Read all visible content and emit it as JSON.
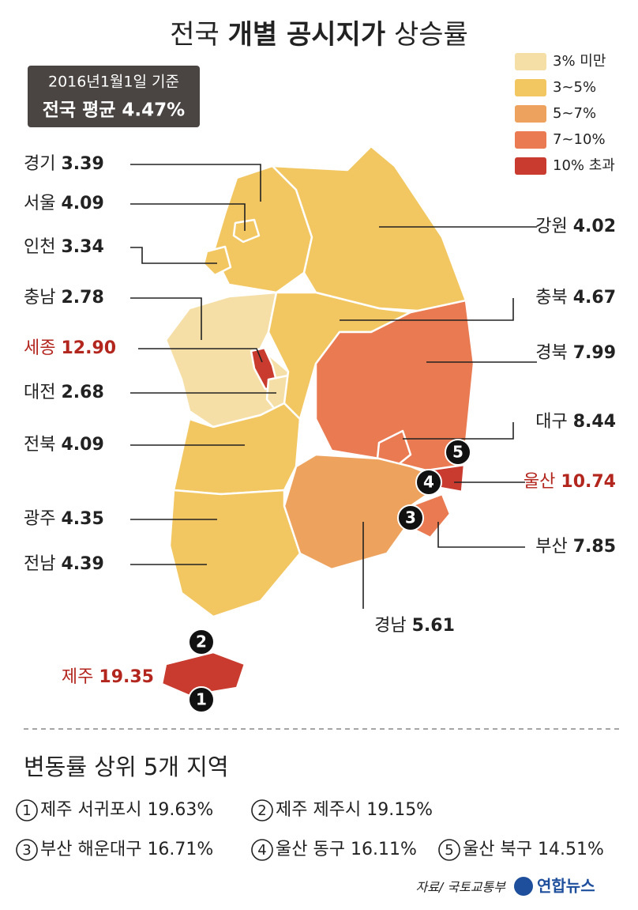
{
  "title": [
    "전국",
    "개별 공시지가",
    "상승률"
  ],
  "info": {
    "date": "2016년1월1일 기준",
    "average": "전국 평균 4.47%"
  },
  "legend": [
    {
      "label": "3% 미만",
      "color": "#f6dfa6"
    },
    {
      "label": "3~5%",
      "color": "#f2c761"
    },
    {
      "label": "5~7%",
      "color": "#eda25d"
    },
    {
      "label": "7~10%",
      "color": "#e97a52"
    },
    {
      "label": "10% 초과",
      "color": "#c83b2e"
    }
  ],
  "regions": [
    {
      "name": "경기",
      "value": "3.39",
      "color": "#f2c761"
    },
    {
      "name": "서울",
      "value": "4.09",
      "color": "#f2c761"
    },
    {
      "name": "인천",
      "value": "3.34",
      "color": "#f2c761"
    },
    {
      "name": "충남",
      "value": "2.78",
      "color": "#f6dfa6"
    },
    {
      "name": "세종",
      "value": "12.90",
      "color": "#c83b2e"
    },
    {
      "name": "대전",
      "value": "2.68",
      "color": "#f6dfa6"
    },
    {
      "name": "전북",
      "value": "4.09",
      "color": "#f2c761"
    },
    {
      "name": "광주",
      "value": "4.35",
      "color": "#f2c761"
    },
    {
      "name": "전남",
      "value": "4.39",
      "color": "#f2c761"
    },
    {
      "name": "강원",
      "value": "4.02",
      "color": "#f2c761"
    },
    {
      "name": "충북",
      "value": "4.67",
      "color": "#f2c761"
    },
    {
      "name": "경북",
      "value": "7.99",
      "color": "#e97a52"
    },
    {
      "name": "대구",
      "value": "8.44",
      "color": "#e97a52"
    },
    {
      "name": "울산",
      "value": "10.74",
      "color": "#c83b2e"
    },
    {
      "name": "부산",
      "value": "7.85",
      "color": "#e97a52"
    },
    {
      "name": "경남",
      "value": "5.61",
      "color": "#eda25d"
    },
    {
      "name": "제주",
      "value": "19.35",
      "color": "#c83b2e"
    }
  ],
  "top5": {
    "heading": "변동률 상위 5개 지역",
    "ranks": [
      {
        "rank": 1,
        "name": "제주 서귀포시",
        "value": "19.63%"
      },
      {
        "rank": 2,
        "name": "제주 제주시",
        "value": "19.15%"
      },
      {
        "rank": 3,
        "name": "부산 해운대구",
        "value": "16.71%"
      },
      {
        "rank": 4,
        "name": "울산 동구",
        "value": "16.11%"
      },
      {
        "rank": 5,
        "name": "울산 북구",
        "value": "14.51%"
      }
    ]
  },
  "source": "자료/ 국토교통부",
  "logo": "연합뉴스"
}
